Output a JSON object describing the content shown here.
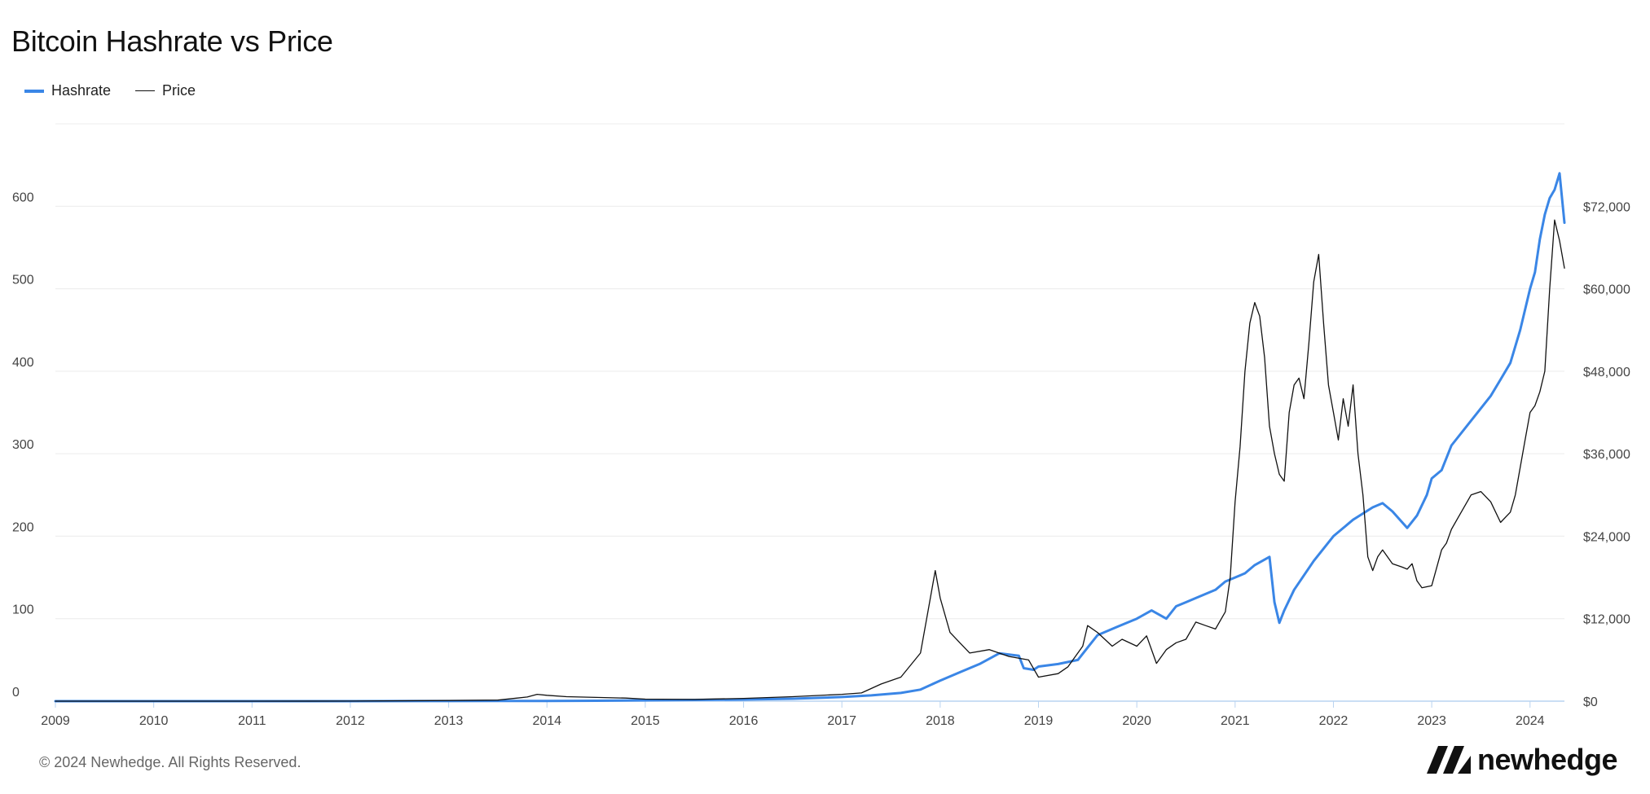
{
  "chart_data": {
    "type": "line",
    "title": "Bitcoin Hashrate vs Price",
    "legend_position": "top-left",
    "grid": true,
    "x_ticks": [
      "2009",
      "2010",
      "2011",
      "2012",
      "2013",
      "2014",
      "2015",
      "2016",
      "2017",
      "2018",
      "2019",
      "2020",
      "2021",
      "2022",
      "2023",
      "2024"
    ],
    "xlim": [
      2009,
      2024.35
    ],
    "y_left": {
      "ticks": [
        "0",
        "100",
        "200",
        "300",
        "400",
        "500",
        "600"
      ],
      "ylim": [
        0,
        700
      ]
    },
    "y_right": {
      "ticks": [
        "$0",
        "$12,000",
        "$24,000",
        "$36,000",
        "$48,000",
        "$60,000",
        "$72,000"
      ],
      "ylim": [
        0,
        84000
      ]
    },
    "series": [
      {
        "name": "Hashrate",
        "axis": "left",
        "color": "#3a86e6",
        "x": [
          2009,
          2012,
          2013,
          2013.5,
          2014,
          2014.5,
          2015,
          2015.5,
          2016,
          2016.5,
          2017,
          2017.3,
          2017.6,
          2017.8,
          2018,
          2018.2,
          2018.4,
          2018.6,
          2018.8,
          2018.85,
          2018.95,
          2019,
          2019.2,
          2019.4,
          2019.5,
          2019.6,
          2019.8,
          2020,
          2020.15,
          2020.3,
          2020.4,
          2020.5,
          2020.6,
          2020.8,
          2020.9,
          2021,
          2021.1,
          2021.2,
          2021.35,
          2021.4,
          2021.45,
          2021.5,
          2021.6,
          2021.8,
          2022,
          2022.2,
          2022.4,
          2022.5,
          2022.6,
          2022.75,
          2022.85,
          2022.95,
          2023,
          2023.1,
          2023.2,
          2023.4,
          2023.6,
          2023.7,
          2023.8,
          2023.9,
          2024,
          2024.05,
          2024.1,
          2024.15,
          2024.2,
          2024.25,
          2024.3,
          2024.35
        ],
        "y": [
          0,
          0,
          0.1,
          0.2,
          0.3,
          0.5,
          1,
          1.5,
          2,
          3,
          5,
          7,
          10,
          14,
          25,
          35,
          45,
          58,
          55,
          40,
          38,
          42,
          45,
          50,
          65,
          80,
          90,
          100,
          110,
          100,
          115,
          120,
          125,
          135,
          145,
          150,
          155,
          165,
          175,
          120,
          95,
          110,
          135,
          170,
          200,
          220,
          235,
          240,
          230,
          210,
          225,
          250,
          270,
          280,
          310,
          340,
          370,
          390,
          410,
          450,
          500,
          520,
          560,
          590,
          610,
          620,
          640,
          580
        ]
      },
      {
        "name": "Price",
        "axis": "right",
        "color": "#111111",
        "x": [
          2009,
          2010,
          2011,
          2012,
          2013,
          2013.5,
          2013.8,
          2013.9,
          2014,
          2014.2,
          2014.5,
          2014.8,
          2015,
          2015.5,
          2016,
          2016.5,
          2017,
          2017.2,
          2017.4,
          2017.6,
          2017.8,
          2017.9,
          2017.95,
          2018,
          2018.1,
          2018.2,
          2018.3,
          2018.5,
          2018.7,
          2018.9,
          2019,
          2019.2,
          2019.3,
          2019.45,
          2019.5,
          2019.6,
          2019.75,
          2019.85,
          2020,
          2020.1,
          2020.2,
          2020.3,
          2020.4,
          2020.5,
          2020.6,
          2020.7,
          2020.8,
          2020.9,
          2020.95,
          2021,
          2021.05,
          2021.1,
          2021.15,
          2021.2,
          2021.25,
          2021.3,
          2021.35,
          2021.4,
          2021.45,
          2021.5,
          2021.55,
          2021.6,
          2021.65,
          2021.7,
          2021.75,
          2021.8,
          2021.85,
          2021.9,
          2021.95,
          2022,
          2022.05,
          2022.1,
          2022.15,
          2022.2,
          2022.25,
          2022.3,
          2022.35,
          2022.4,
          2022.45,
          2022.5,
          2022.6,
          2022.7,
          2022.75,
          2022.8,
          2022.85,
          2022.9,
          2023,
          2023.1,
          2023.15,
          2023.2,
          2023.3,
          2023.4,
          2023.5,
          2023.6,
          2023.7,
          2023.8,
          2023.85,
          2023.9,
          2023.95,
          2024,
          2024.05,
          2024.1,
          2024.15,
          2024.2,
          2024.25,
          2024.3,
          2024.35
        ],
        "y": [
          0,
          0,
          5,
          10,
          100,
          150,
          600,
          1000,
          850,
          650,
          550,
          450,
          300,
          250,
          400,
          650,
          1000,
          1200,
          2500,
          3500,
          7000,
          15000,
          19000,
          15000,
          10000,
          8500,
          7000,
          7500,
          6500,
          6000,
          3500,
          4000,
          5000,
          8000,
          11000,
          10000,
          8000,
          9000,
          8000,
          9500,
          5500,
          7500,
          8500,
          9000,
          11500,
          11000,
          10500,
          13000,
          18000,
          29000,
          37000,
          48000,
          55000,
          58000,
          56000,
          50000,
          40000,
          36000,
          33000,
          32000,
          42000,
          46000,
          47000,
          44000,
          52000,
          61000,
          65000,
          55000,
          46000,
          42000,
          38000,
          44000,
          40000,
          46000,
          36000,
          30000,
          21000,
          19000,
          21000,
          22000,
          20000,
          19500,
          19200,
          20000,
          17500,
          16500,
          16800,
          22000,
          23000,
          25000,
          27500,
          30000,
          30500,
          29000,
          26000,
          27500,
          30000,
          34000,
          38000,
          42000,
          43000,
          45000,
          48000,
          60000,
          70000,
          67000,
          63000
        ]
      }
    ]
  },
  "footer": {
    "copyright": "© 2024 Newhedge. All Rights Reserved."
  },
  "brand": {
    "name": "newhedge"
  }
}
